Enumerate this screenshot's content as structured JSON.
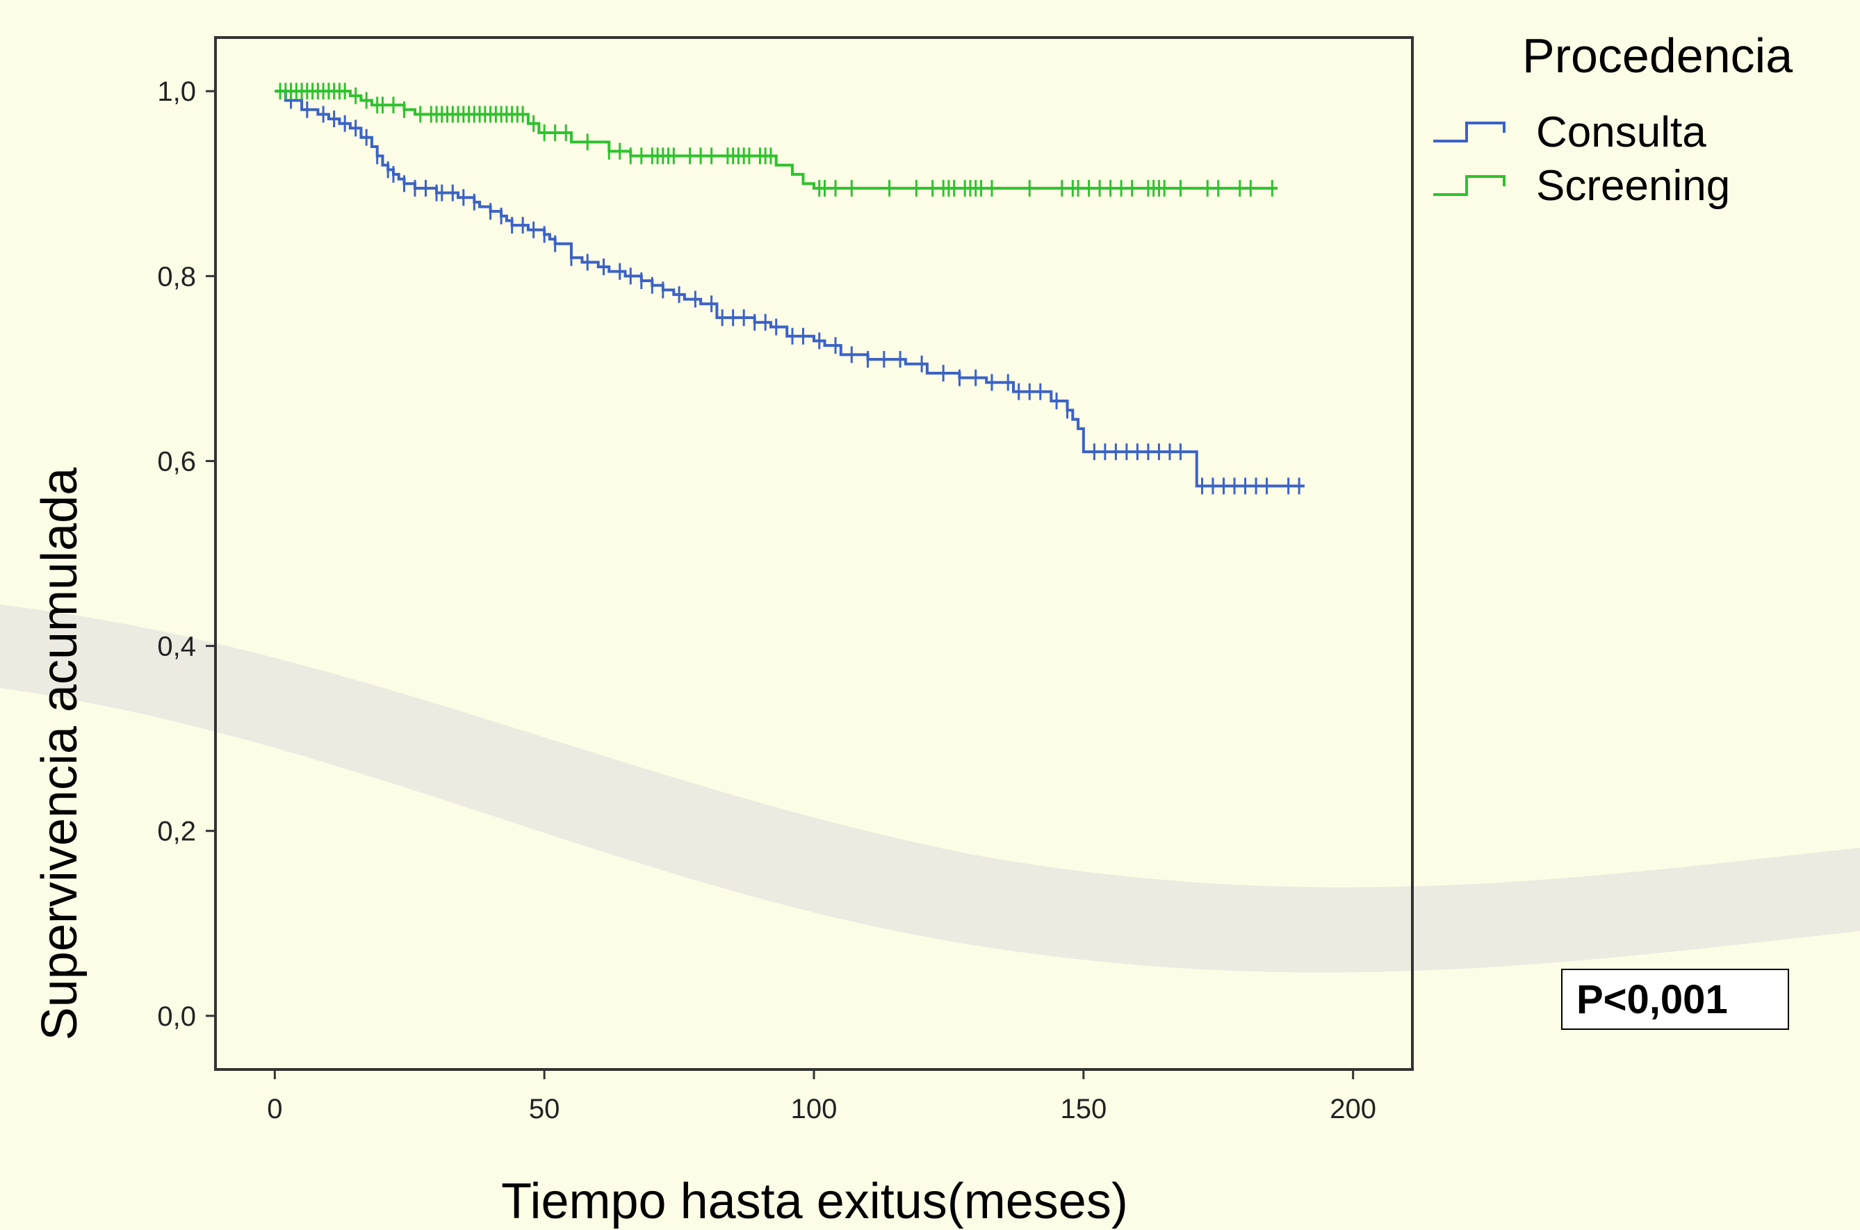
{
  "chart_data": {
    "type": "line",
    "subtype": "kaplan-meier step",
    "xlabel": "Tiempo hasta exitus(meses)",
    "ylabel": "Supervivencia acumulada",
    "xlim": [
      -11,
      211
    ],
    "ylim": [
      -0.058,
      1.058
    ],
    "x_ticks": [
      0,
      50,
      100,
      150,
      200
    ],
    "x_tick_labels": [
      "0",
      "50",
      "100",
      "150",
      "200"
    ],
    "y_ticks": [
      0.0,
      0.2,
      0.4,
      0.6,
      0.8,
      1.0
    ],
    "y_tick_labels": [
      "0,0",
      "0,2",
      "0,4",
      "0,6",
      "0,8",
      "1,0"
    ],
    "grid": false,
    "legend_title": "Procedencia",
    "legend_position": "top-right, outside plot",
    "annotation": "P<0,001",
    "series": [
      {
        "name": "Consulta",
        "color": "#3a62c8",
        "steps": [
          [
            0,
            1.0
          ],
          [
            2,
            0.99
          ],
          [
            5,
            0.98
          ],
          [
            8,
            0.975
          ],
          [
            10,
            0.97
          ],
          [
            12,
            0.965
          ],
          [
            14,
            0.96
          ],
          [
            16,
            0.95
          ],
          [
            18,
            0.94
          ],
          [
            19,
            0.93
          ],
          [
            20,
            0.92
          ],
          [
            21,
            0.915
          ],
          [
            22,
            0.91
          ],
          [
            23,
            0.905
          ],
          [
            24,
            0.9
          ],
          [
            26,
            0.895
          ],
          [
            30,
            0.89
          ],
          [
            34,
            0.885
          ],
          [
            37,
            0.88
          ],
          [
            38,
            0.875
          ],
          [
            40,
            0.87
          ],
          [
            42,
            0.865
          ],
          [
            43,
            0.86
          ],
          [
            44,
            0.855
          ],
          [
            47,
            0.85
          ],
          [
            50,
            0.845
          ],
          [
            51,
            0.84
          ],
          [
            52,
            0.835
          ],
          [
            55,
            0.82
          ],
          [
            57,
            0.815
          ],
          [
            60,
            0.81
          ],
          [
            62,
            0.805
          ],
          [
            65,
            0.8
          ],
          [
            68,
            0.795
          ],
          [
            70,
            0.79
          ],
          [
            72,
            0.785
          ],
          [
            74,
            0.78
          ],
          [
            76,
            0.775
          ],
          [
            79,
            0.77
          ],
          [
            82,
            0.755
          ],
          [
            89,
            0.75
          ],
          [
            92,
            0.745
          ],
          [
            95,
            0.735
          ],
          [
            100,
            0.73
          ],
          [
            102,
            0.725
          ],
          [
            105,
            0.715
          ],
          [
            110,
            0.71
          ],
          [
            117,
            0.705
          ],
          [
            121,
            0.695
          ],
          [
            127,
            0.69
          ],
          [
            132,
            0.685
          ],
          [
            137,
            0.675
          ],
          [
            144,
            0.665
          ],
          [
            147,
            0.655
          ],
          [
            148,
            0.645
          ],
          [
            149,
            0.635
          ],
          [
            150,
            0.61
          ],
          [
            170,
            0.61
          ],
          [
            171,
            0.573
          ],
          [
            191,
            0.573
          ]
        ],
        "censor_x": [
          3,
          6,
          9,
          11,
          13,
          15,
          17,
          19,
          21,
          22,
          24,
          26,
          28,
          30,
          31,
          33,
          35,
          37,
          40,
          42,
          44,
          46,
          48,
          50,
          52,
          55,
          58,
          61,
          64,
          66,
          68,
          70,
          72,
          75,
          78,
          81,
          83,
          85,
          87,
          89,
          91,
          93,
          96,
          98,
          101,
          104,
          107,
          110,
          113,
          116,
          120,
          124,
          127,
          130,
          133,
          136,
          138,
          140,
          142,
          145,
          147,
          152,
          154,
          156,
          158,
          160,
          162,
          164,
          166,
          168,
          172,
          174,
          176,
          178,
          180,
          182,
          184,
          188,
          190
        ]
      },
      {
        "name": "Screening",
        "color": "#2ec22e",
        "steps": [
          [
            0,
            1.0
          ],
          [
            14,
            0.995
          ],
          [
            16,
            0.99
          ],
          [
            18,
            0.985
          ],
          [
            24,
            0.98
          ],
          [
            26,
            0.975
          ],
          [
            47,
            0.965
          ],
          [
            49,
            0.955
          ],
          [
            55,
            0.945
          ],
          [
            62,
            0.935
          ],
          [
            66,
            0.93
          ],
          [
            93,
            0.92
          ],
          [
            96,
            0.91
          ],
          [
            98,
            0.9
          ],
          [
            100,
            0.895
          ],
          [
            186,
            0.895
          ]
        ],
        "censor_x": [
          1,
          2,
          3,
          4,
          5,
          6,
          7,
          8,
          9,
          10,
          11,
          12,
          13,
          15,
          17,
          19,
          20,
          22,
          24,
          27,
          29,
          30,
          31,
          32,
          33,
          34,
          35,
          36,
          37,
          38,
          39,
          40,
          41,
          42,
          43,
          44,
          45,
          46,
          48,
          50,
          52,
          54,
          58,
          62,
          64,
          66,
          68,
          70,
          71,
          72,
          73,
          74,
          77,
          79,
          81,
          84,
          85,
          86,
          87,
          88,
          90,
          91,
          92,
          101,
          102,
          104,
          107,
          114,
          119,
          122,
          124,
          125,
          126,
          128,
          129,
          130,
          131,
          133,
          140,
          146,
          148,
          149,
          151,
          153,
          155,
          157,
          159,
          162,
          163,
          164,
          165,
          168,
          173,
          175,
          179,
          181,
          185
        ]
      }
    ]
  }
}
